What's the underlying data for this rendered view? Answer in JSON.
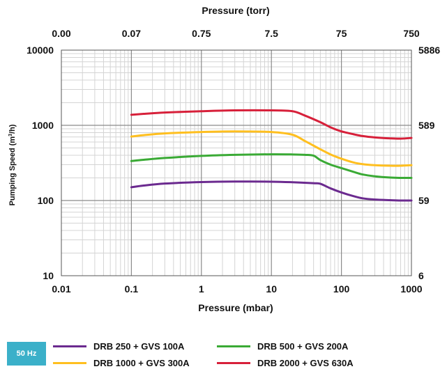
{
  "chart_data": {
    "type": "line",
    "top_axis_title": "Pressure (torr)",
    "top_ticks": [
      "0.00",
      "0.07",
      "0.75",
      "7.5",
      "75",
      "750"
    ],
    "xlabel": "Pressure (mbar)",
    "x_scale": "log",
    "xlim": [
      0.01,
      1000
    ],
    "x_ticks": [
      "0.01",
      "0.1",
      "1",
      "10",
      "100",
      "1000"
    ],
    "ylabel_prefix": "Pumping Speed (m",
    "ylabel_sup": "3",
    "ylabel_suffix": "/h)",
    "y_scale": "log",
    "ylim": [
      10,
      10000
    ],
    "y_ticks": [
      "10",
      "100",
      "1000",
      "10000"
    ],
    "right_ticks": [
      "6",
      "59",
      "589",
      "5886"
    ],
    "grid": true,
    "badge": "50 Hz",
    "badge_color": "#3bb0c9",
    "series": [
      {
        "name": "DRB 250 + GVS 100A",
        "color": "#6b2a8f",
        "x": [
          0.1,
          0.15,
          0.3,
          1,
          3,
          10,
          20,
          40,
          50,
          70,
          100,
          150,
          200,
          300,
          500,
          700,
          1000
        ],
        "y": [
          150,
          158,
          168,
          176,
          179,
          178,
          175,
          170,
          167,
          145,
          128,
          114,
          107,
          103,
          101,
          100,
          100
        ]
      },
      {
        "name": "DRB 500 + GVS 200A",
        "color": "#3aaa35",
        "x": [
          0.1,
          0.15,
          0.3,
          1,
          3,
          10,
          20,
          30,
          40,
          50,
          70,
          100,
          150,
          200,
          300,
          500,
          700,
          1000
        ],
        "y": [
          335,
          348,
          368,
          392,
          405,
          412,
          410,
          405,
          395,
          345,
          300,
          270,
          240,
          222,
          210,
          202,
          200,
          200
        ]
      },
      {
        "name": "DRB 1000 + GVS 300A",
        "color": "#ffbf1f",
        "x": [
          0.1,
          0.15,
          0.3,
          1,
          3,
          10,
          20,
          30,
          50,
          70,
          100,
          150,
          200,
          300,
          500,
          700,
          1000
        ],
        "y": [
          710,
          740,
          780,
          815,
          830,
          815,
          750,
          620,
          480,
          410,
          360,
          320,
          305,
          295,
          290,
          290,
          295
        ]
      },
      {
        "name": "DRB 2000 + GVS 630A",
        "color": "#d7203a",
        "x": [
          0.1,
          0.15,
          0.3,
          1,
          3,
          10,
          20,
          30,
          50,
          70,
          100,
          150,
          200,
          300,
          500,
          700,
          1000
        ],
        "y": [
          1380,
          1420,
          1480,
          1540,
          1580,
          1580,
          1540,
          1350,
          1100,
          940,
          830,
          760,
          720,
          690,
          670,
          665,
          680
        ]
      }
    ]
  }
}
